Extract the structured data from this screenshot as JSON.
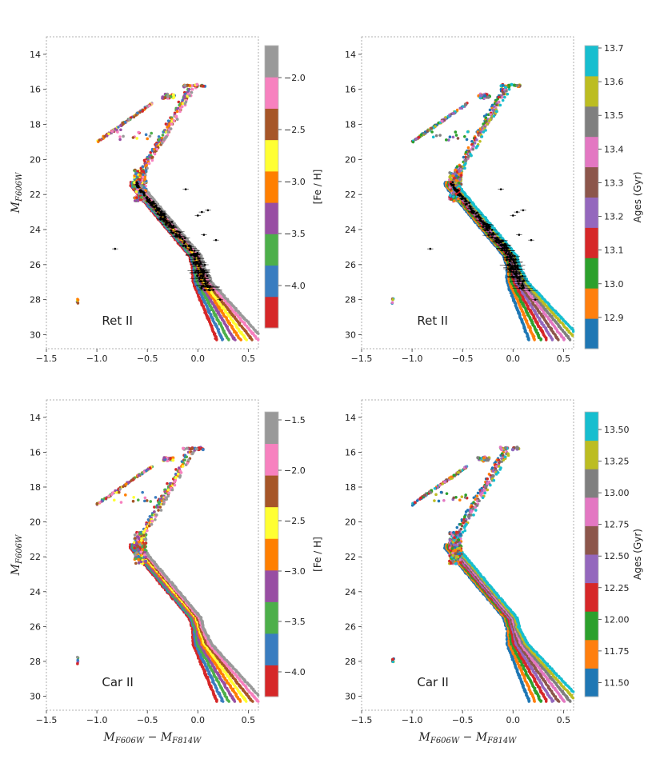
{
  "chart_data": [
    {
      "type": "scatter",
      "title": "Ret II",
      "xlabel": "",
      "ylabel": "M_F606W",
      "xlim": [
        -1.5,
        0.6
      ],
      "ylim": [
        30.8,
        13
      ],
      "xticks": [
        "-1.5",
        "-1.0",
        "-0.5",
        "0.0",
        "0.5"
      ],
      "yticks": [
        "14",
        "16",
        "18",
        "20",
        "22",
        "24",
        "26",
        "28",
        "30"
      ],
      "color_by": "metallicity",
      "colorbar": {
        "title": "[Fe / H]",
        "ticks": [
          "-2.0",
          "-2.5",
          "-3.0",
          "-3.5",
          "-4.0"
        ],
        "colors": [
          "#d62728",
          "#3a7dc0",
          "#4daf4a",
          "#984ea3",
          "#ff7f00",
          "#ffff33",
          "#a65628",
          "#f781bf",
          "#999999"
        ]
      },
      "observed": true
    },
    {
      "type": "scatter",
      "title": "Ret II",
      "xlabel": "",
      "ylabel": "",
      "xlim": [
        -1.5,
        0.6
      ],
      "ylim": [
        30.8,
        13
      ],
      "xticks": [
        "-1.5",
        "-1.0",
        "-0.5",
        "0.0",
        "0.5"
      ],
      "yticks": [
        "14",
        "16",
        "18",
        "20",
        "22",
        "24",
        "26",
        "28",
        "30"
      ],
      "color_by": "age",
      "colorbar": {
        "title": "Ages (Gyr)",
        "ticks": [
          "13.7",
          "13.6",
          "13.5",
          "13.4",
          "13.3",
          "13.2",
          "13.1",
          "13.0",
          "12.9"
        ],
        "colors": [
          "#1f77b4",
          "#ff7f0e",
          "#2ca02c",
          "#d62728",
          "#9467bd",
          "#8c564b",
          "#e377c2",
          "#7f7f7f",
          "#bcbd22",
          "#17becf"
        ]
      },
      "observed": true
    },
    {
      "type": "scatter",
      "title": "Car II",
      "xlabel": "M_F606W − M_F814W",
      "ylabel": "M_F606W",
      "xlim": [
        -1.5,
        0.6
      ],
      "ylim": [
        30.8,
        13
      ],
      "xticks": [
        "-1.5",
        "-1.0",
        "-0.5",
        "0.0",
        "0.5"
      ],
      "yticks": [
        "14",
        "16",
        "18",
        "20",
        "22",
        "24",
        "26",
        "28",
        "30"
      ],
      "color_by": "metallicity",
      "colorbar": {
        "title": "[Fe / H]",
        "ticks": [
          "-1.5",
          "-2.0",
          "-2.5",
          "-3.0",
          "-3.5",
          "-4.0"
        ],
        "colors": [
          "#d62728",
          "#3a7dc0",
          "#4daf4a",
          "#984ea3",
          "#ff7f00",
          "#ffff33",
          "#a65628",
          "#f781bf",
          "#999999"
        ]
      },
      "observed": false
    },
    {
      "type": "scatter",
      "title": "Car II",
      "xlabel": "M_F606W − M_F814W",
      "ylabel": "",
      "xlim": [
        -1.5,
        0.6
      ],
      "ylim": [
        30.8,
        13
      ],
      "xticks": [
        "-1.5",
        "-1.0",
        "-0.5",
        "0.0",
        "0.5"
      ],
      "yticks": [
        "14",
        "16",
        "18",
        "20",
        "22",
        "24",
        "26",
        "28",
        "30"
      ],
      "color_by": "age",
      "colorbar": {
        "title": "Ages (Gyr)",
        "ticks": [
          "13.50",
          "13.25",
          "13.00",
          "12.75",
          "12.50",
          "12.25",
          "12.00",
          "11.75",
          "11.50"
        ],
        "colors": [
          "#1f77b4",
          "#ff7f0e",
          "#2ca02c",
          "#d62728",
          "#9467bd",
          "#8c564b",
          "#e377c2",
          "#7f7f7f",
          "#bcbd22",
          "#17becf"
        ]
      },
      "observed": false
    }
  ]
}
